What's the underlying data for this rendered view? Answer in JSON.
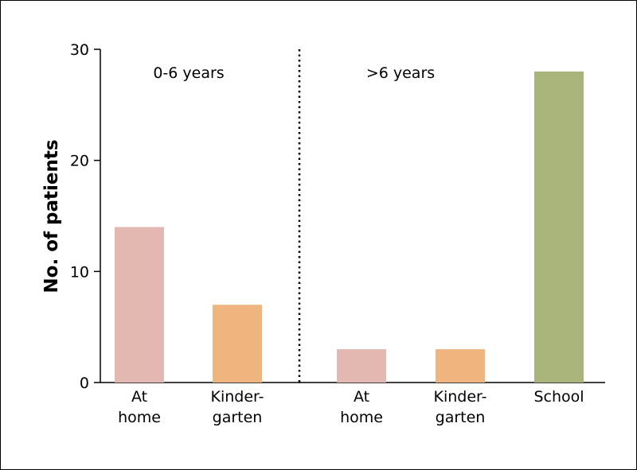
{
  "chart_data": {
    "type": "bar",
    "ylabel": "No. of patients",
    "xlabel": "",
    "ylim": [
      0,
      30
    ],
    "yticks": [
      0,
      10,
      20,
      30
    ],
    "grid": false,
    "groups": [
      {
        "label": "0-6 years",
        "bars": [
          {
            "category": [
              "At",
              "home"
            ],
            "value": 14,
            "color": "#e2b8b0"
          },
          {
            "category": [
              "Kinder-",
              "garten"
            ],
            "value": 7,
            "color": "#f0b57f"
          }
        ]
      },
      {
        "label": ">6 years",
        "bars": [
          {
            "category": [
              "At",
              "home"
            ],
            "value": 3,
            "color": "#e2b8b0"
          },
          {
            "category": [
              "Kinder-",
              "garten"
            ],
            "value": 3,
            "color": "#f0b57f"
          },
          {
            "category": [
              "School"
            ],
            "value": 28,
            "color": "#a8b57a"
          }
        ]
      }
    ]
  }
}
